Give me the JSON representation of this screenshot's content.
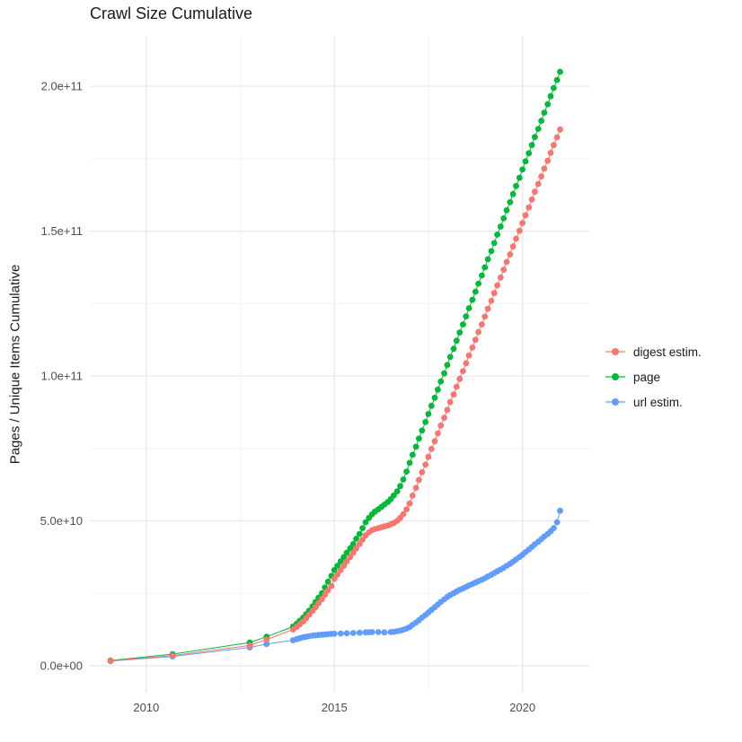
{
  "title": "Crawl Size Cumulative",
  "ylabel": "Pages / Unique Items Cumulative",
  "chart_data": {
    "type": "scatter",
    "title": "Crawl Size Cumulative",
    "xlabel": "",
    "ylabel": "Pages / Unique Items Cumulative",
    "value_unit": "points are [year, cumulative items in billions (1e9)]",
    "xlim": [
      2008.5,
      2021.8
    ],
    "ylim": [
      -9.3,
      217.4
    ],
    "grid": true,
    "legend_position": "right",
    "background": "#ffffff",
    "major_grid_color": "#e8e8e8",
    "minor_grid_color": "#f1f1f1",
    "x_ticks": {
      "values": [
        2010,
        2015,
        2020
      ],
      "labels": [
        "2010",
        "2015",
        "2020"
      ]
    },
    "y_ticks": {
      "values": [
        0,
        50,
        100,
        150,
        200
      ],
      "labels": [
        "0.0e+00",
        "5.0e+10",
        "1.0e+11",
        "1.5e+11",
        "2.0e+11"
      ]
    },
    "x_minor": [
      2012.5,
      2017.5
    ],
    "y_minor": [
      25,
      75,
      125,
      175
    ],
    "series": [
      {
        "id": "digest-estim",
        "name": "digest estim.",
        "color": "#F8766D",
        "points": [
          [
            2009.05,
            1.7
          ],
          [
            2010.7,
            3.5
          ],
          [
            2012.75,
            7
          ],
          [
            2013.2,
            9
          ],
          [
            2013.9,
            12.5
          ],
          [
            2014.0,
            13.4
          ],
          [
            2014.08,
            14.3
          ],
          [
            2014.17,
            15.3
          ],
          [
            2014.25,
            16.4
          ],
          [
            2014.33,
            17.6
          ],
          [
            2014.42,
            18.9
          ],
          [
            2014.5,
            20.2
          ],
          [
            2014.58,
            21.6
          ],
          [
            2014.67,
            23
          ],
          [
            2014.75,
            24.5
          ],
          [
            2014.83,
            26
          ],
          [
            2014.92,
            27.5
          ],
          [
            2015.0,
            30
          ],
          [
            2015.08,
            31.5
          ],
          [
            2015.17,
            33
          ],
          [
            2015.25,
            34.5
          ],
          [
            2015.33,
            36
          ],
          [
            2015.42,
            37.5
          ],
          [
            2015.5,
            39
          ],
          [
            2015.58,
            40.5
          ],
          [
            2015.67,
            42
          ],
          [
            2015.75,
            43.5
          ],
          [
            2015.83,
            45
          ],
          [
            2015.92,
            46
          ],
          [
            2016.0,
            46.8
          ],
          [
            2016.08,
            47.2
          ],
          [
            2016.17,
            47.5
          ],
          [
            2016.25,
            47.8
          ],
          [
            2016.33,
            48.1
          ],
          [
            2016.42,
            48.4
          ],
          [
            2016.5,
            48.8
          ],
          [
            2016.58,
            49.3
          ],
          [
            2016.67,
            50
          ],
          [
            2016.75,
            51
          ],
          [
            2016.83,
            52.3
          ],
          [
            2016.92,
            54
          ],
          [
            2017.0,
            56
          ],
          [
            2017.08,
            58.7
          ],
          [
            2017.17,
            61.4
          ],
          [
            2017.25,
            64.1
          ],
          [
            2017.33,
            66.8
          ],
          [
            2017.42,
            69.4
          ],
          [
            2017.5,
            72.1
          ],
          [
            2017.58,
            74.8
          ],
          [
            2017.67,
            77.5
          ],
          [
            2017.75,
            80.2
          ],
          [
            2017.83,
            82.9
          ],
          [
            2017.92,
            85.6
          ],
          [
            2018.0,
            88.3
          ],
          [
            2018.08,
            91.0
          ],
          [
            2018.17,
            93.6
          ],
          [
            2018.25,
            96.3
          ],
          [
            2018.33,
            99.0
          ],
          [
            2018.42,
            101.7
          ],
          [
            2018.5,
            104.4
          ],
          [
            2018.58,
            107.1
          ],
          [
            2018.67,
            109.8
          ],
          [
            2018.75,
            112.5
          ],
          [
            2018.83,
            115.2
          ],
          [
            2018.92,
            117.8
          ],
          [
            2019.0,
            120.5
          ],
          [
            2019.08,
            123.2
          ],
          [
            2019.17,
            125.9
          ],
          [
            2019.25,
            128.6
          ],
          [
            2019.33,
            131.3
          ],
          [
            2019.42,
            134.0
          ],
          [
            2019.5,
            136.7
          ],
          [
            2019.58,
            139.4
          ],
          [
            2019.67,
            142.0
          ],
          [
            2019.75,
            144.7
          ],
          [
            2019.83,
            147.4
          ],
          [
            2019.92,
            150.1
          ],
          [
            2020.0,
            152.8
          ],
          [
            2020.08,
            155.5
          ],
          [
            2020.17,
            158.2
          ],
          [
            2020.25,
            160.9
          ],
          [
            2020.33,
            163.6
          ],
          [
            2020.42,
            166.3
          ],
          [
            2020.5,
            168.9
          ],
          [
            2020.58,
            171.6
          ],
          [
            2020.67,
            174.3
          ],
          [
            2020.75,
            177.0
          ],
          [
            2020.83,
            179.7
          ],
          [
            2020.92,
            182.4
          ],
          [
            2021.0,
            185.1
          ]
        ]
      },
      {
        "id": "page",
        "name": "page",
        "color": "#00BA38",
        "points": [
          [
            2009.05,
            1.8
          ],
          [
            2010.7,
            4
          ],
          [
            2012.75,
            8
          ],
          [
            2013.2,
            10
          ],
          [
            2013.9,
            13.5
          ],
          [
            2014.0,
            14.5
          ],
          [
            2014.08,
            15.5
          ],
          [
            2014.17,
            16.6
          ],
          [
            2014.25,
            17.8
          ],
          [
            2014.33,
            19
          ],
          [
            2014.42,
            20.5
          ],
          [
            2014.5,
            22
          ],
          [
            2014.58,
            23.5
          ],
          [
            2014.67,
            25
          ],
          [
            2014.75,
            27
          ],
          [
            2014.83,
            29
          ],
          [
            2014.92,
            31
          ],
          [
            2015.0,
            33
          ],
          [
            2015.08,
            34.5
          ],
          [
            2015.17,
            36
          ],
          [
            2015.25,
            37.5
          ],
          [
            2015.33,
            39
          ],
          [
            2015.42,
            40.5
          ],
          [
            2015.5,
            42
          ],
          [
            2015.58,
            43.8
          ],
          [
            2015.67,
            45.5
          ],
          [
            2015.75,
            47.5
          ],
          [
            2015.83,
            49.5
          ],
          [
            2015.92,
            51
          ],
          [
            2016.0,
            52.2
          ],
          [
            2016.08,
            53.2
          ],
          [
            2016.17,
            54
          ],
          [
            2016.25,
            54.8
          ],
          [
            2016.33,
            55.6
          ],
          [
            2016.42,
            56.5
          ],
          [
            2016.5,
            57.5
          ],
          [
            2016.58,
            58.8
          ],
          [
            2016.67,
            60.2
          ],
          [
            2016.75,
            62
          ],
          [
            2016.83,
            64.3
          ],
          [
            2016.92,
            67
          ],
          [
            2017.0,
            70
          ],
          [
            2017.08,
            72.8
          ],
          [
            2017.17,
            75.6
          ],
          [
            2017.25,
            78.4
          ],
          [
            2017.33,
            81.2
          ],
          [
            2017.42,
            84.1
          ],
          [
            2017.5,
            86.9
          ],
          [
            2017.58,
            89.7
          ],
          [
            2017.67,
            92.5
          ],
          [
            2017.75,
            95.3
          ],
          [
            2017.83,
            98.1
          ],
          [
            2017.92,
            100.9
          ],
          [
            2018.0,
            103.8
          ],
          [
            2018.08,
            106.6
          ],
          [
            2018.17,
            109.4
          ],
          [
            2018.25,
            112.2
          ],
          [
            2018.33,
            115.0
          ],
          [
            2018.42,
            117.8
          ],
          [
            2018.5,
            120.6
          ],
          [
            2018.58,
            123.4
          ],
          [
            2018.67,
            126.3
          ],
          [
            2018.75,
            129.1
          ],
          [
            2018.83,
            131.9
          ],
          [
            2018.92,
            134.7
          ],
          [
            2019.0,
            137.5
          ],
          [
            2019.08,
            140.3
          ],
          [
            2019.17,
            143.1
          ],
          [
            2019.25,
            145.9
          ],
          [
            2019.33,
            148.8
          ],
          [
            2019.42,
            151.6
          ],
          [
            2019.5,
            154.4
          ],
          [
            2019.58,
            157.2
          ],
          [
            2019.67,
            160.0
          ],
          [
            2019.75,
            162.8
          ],
          [
            2019.83,
            165.6
          ],
          [
            2019.92,
            168.4
          ],
          [
            2020.0,
            171.3
          ],
          [
            2020.08,
            174.1
          ],
          [
            2020.17,
            176.9
          ],
          [
            2020.25,
            179.7
          ],
          [
            2020.33,
            182.5
          ],
          [
            2020.42,
            185.3
          ],
          [
            2020.5,
            188.1
          ],
          [
            2020.58,
            190.9
          ],
          [
            2020.67,
            193.8
          ],
          [
            2020.75,
            196.6
          ],
          [
            2020.83,
            199.4
          ],
          [
            2020.92,
            202.2
          ],
          [
            2021.0,
            205
          ]
        ]
      },
      {
        "id": "url-estim",
        "name": "url estim.",
        "color": "#619CFF",
        "points": [
          [
            2009.05,
            1.6
          ],
          [
            2010.7,
            3.2
          ],
          [
            2012.75,
            6.3
          ],
          [
            2013.2,
            7.5
          ],
          [
            2013.9,
            8.8
          ],
          [
            2014.0,
            9.2
          ],
          [
            2014.08,
            9.5
          ],
          [
            2014.17,
            9.8
          ],
          [
            2014.25,
            10
          ],
          [
            2014.33,
            10.2
          ],
          [
            2014.42,
            10.4
          ],
          [
            2014.5,
            10.5
          ],
          [
            2014.58,
            10.6
          ],
          [
            2014.67,
            10.7
          ],
          [
            2014.75,
            10.8
          ],
          [
            2014.83,
            10.9
          ],
          [
            2014.92,
            11
          ],
          [
            2015.0,
            11.05
          ],
          [
            2015.17,
            11.1
          ],
          [
            2015.33,
            11.2
          ],
          [
            2015.5,
            11.3
          ],
          [
            2015.67,
            11.4
          ],
          [
            2015.83,
            11.5
          ],
          [
            2015.92,
            11.55
          ],
          [
            2016.0,
            11.6
          ],
          [
            2016.17,
            11.6
          ],
          [
            2016.33,
            11.5
          ],
          [
            2016.5,
            11.6
          ],
          [
            2016.58,
            11.7
          ],
          [
            2016.67,
            11.9
          ],
          [
            2016.75,
            12.1
          ],
          [
            2016.83,
            12.4
          ],
          [
            2016.92,
            12.8
          ],
          [
            2017.0,
            13.3
          ],
          [
            2017.08,
            14.1
          ],
          [
            2017.17,
            14.9
          ],
          [
            2017.25,
            15.7
          ],
          [
            2017.33,
            16.6
          ],
          [
            2017.42,
            17.5
          ],
          [
            2017.5,
            18.4
          ],
          [
            2017.58,
            19.3
          ],
          [
            2017.67,
            20.2
          ],
          [
            2017.75,
            21.1
          ],
          [
            2017.83,
            22.0
          ],
          [
            2017.92,
            22.9
          ],
          [
            2018.0,
            23.7
          ],
          [
            2018.08,
            24.4
          ],
          [
            2018.17,
            25.0
          ],
          [
            2018.25,
            25.6
          ],
          [
            2018.33,
            26.2
          ],
          [
            2018.42,
            26.7
          ],
          [
            2018.5,
            27.2
          ],
          [
            2018.58,
            27.7
          ],
          [
            2018.67,
            28.2
          ],
          [
            2018.75,
            28.7
          ],
          [
            2018.83,
            29.2
          ],
          [
            2018.92,
            29.7
          ],
          [
            2019.0,
            30.2
          ],
          [
            2019.08,
            30.8
          ],
          [
            2019.17,
            31.4
          ],
          [
            2019.25,
            32.0
          ],
          [
            2019.33,
            32.6
          ],
          [
            2019.42,
            33.2
          ],
          [
            2019.5,
            33.8
          ],
          [
            2019.58,
            34.5
          ],
          [
            2019.67,
            35.2
          ],
          [
            2019.75,
            35.9
          ],
          [
            2019.83,
            36.7
          ],
          [
            2019.92,
            37.5
          ],
          [
            2020.0,
            38.3
          ],
          [
            2020.08,
            39.2
          ],
          [
            2020.17,
            40.1
          ],
          [
            2020.25,
            41.0
          ],
          [
            2020.33,
            41.9
          ],
          [
            2020.42,
            42.8
          ],
          [
            2020.5,
            43.7
          ],
          [
            2020.58,
            44.6
          ],
          [
            2020.67,
            45.5
          ],
          [
            2020.75,
            46.4
          ],
          [
            2020.83,
            47.5
          ],
          [
            2020.92,
            49.5
          ],
          [
            2021.0,
            53.5
          ]
        ]
      }
    ]
  }
}
